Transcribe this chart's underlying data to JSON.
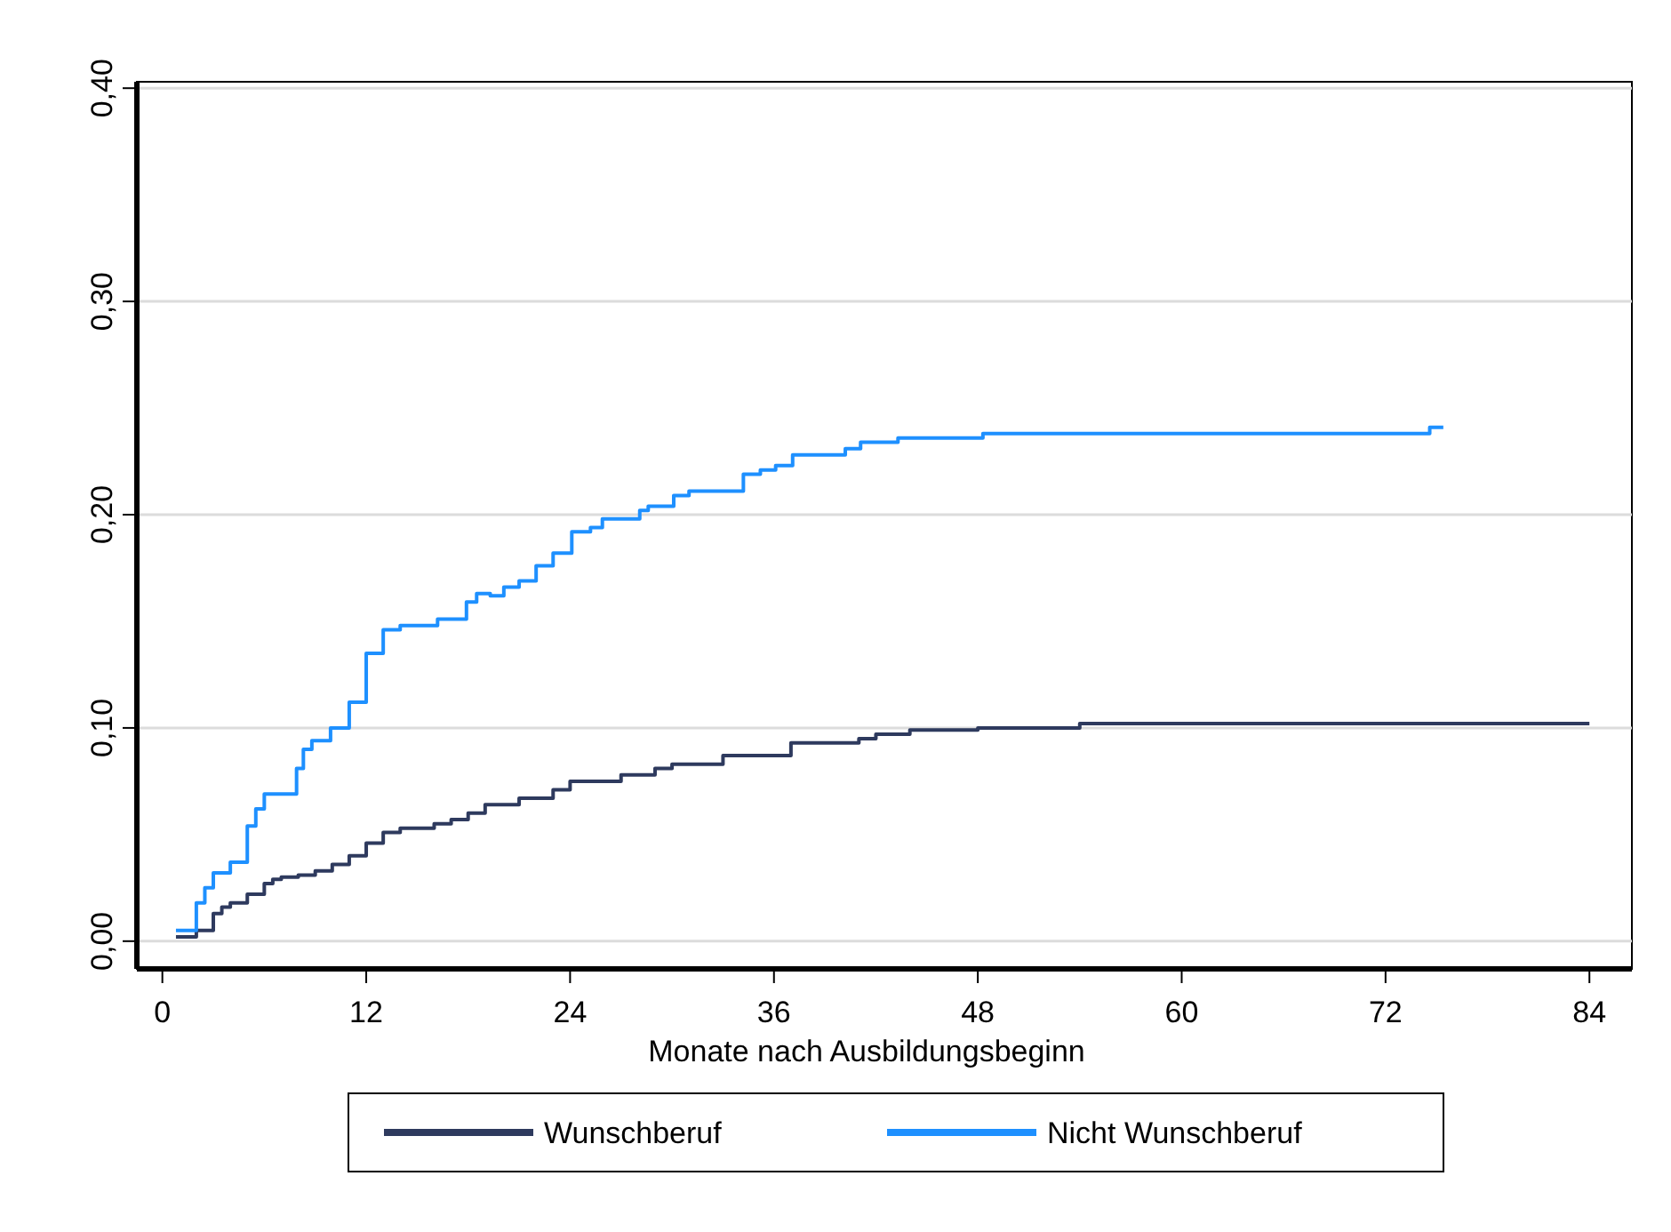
{
  "chart_data": {
    "type": "step",
    "xlabel": "Monate nach Ausbildungsbeginn",
    "xlim": [
      -1.5,
      86.5
    ],
    "xticks": [
      0,
      12,
      24,
      36,
      48,
      60,
      72,
      84
    ],
    "ylim": [
      -0.013,
      0.403
    ],
    "yticks": [
      {
        "value": 0,
        "label": "0,00"
      },
      {
        "value": 0.1,
        "label": "0,10"
      },
      {
        "value": 0.2,
        "label": "0,20"
      },
      {
        "value": 0.3,
        "label": "0,30"
      },
      {
        "value": 0.4,
        "label": "0,40"
      }
    ],
    "grid": "y",
    "legend": "bottom",
    "line_style": "solid",
    "marker": "none",
    "series": [
      {
        "name": "Wunschberuf",
        "color": "#2e3a5e",
        "x": [
          0.8,
          2,
          3,
          3.5,
          4,
          5,
          6,
          6.5,
          7,
          8,
          9,
          10,
          11,
          12,
          13,
          14,
          16,
          17,
          18,
          19,
          21,
          23,
          24,
          27,
          29,
          30,
          33,
          37,
          41,
          42,
          44,
          48,
          54,
          84
        ],
        "values": [
          0.002,
          0.005,
          0.013,
          0.016,
          0.018,
          0.022,
          0.027,
          0.029,
          0.03,
          0.031,
          0.033,
          0.036,
          0.04,
          0.046,
          0.051,
          0.053,
          0.055,
          0.057,
          0.06,
          0.064,
          0.067,
          0.071,
          0.075,
          0.078,
          0.081,
          0.083,
          0.087,
          0.093,
          0.095,
          0.097,
          0.099,
          0.1,
          0.102,
          0.102
        ]
      },
      {
        "name": "Nicht Wunschberuf",
        "color": "#1e90ff",
        "x": [
          0.8,
          2,
          2.5,
          3,
          4,
          5,
          5.5,
          6,
          7.9,
          8.3,
          8.8,
          9.9,
          11,
          12,
          13,
          14,
          16.2,
          17.9,
          18.5,
          19.3,
          20.1,
          21,
          22,
          23,
          24.1,
          25.2,
          25.9,
          28.1,
          28.6,
          30.1,
          31,
          34.2,
          35.2,
          36.1,
          37.1,
          40.2,
          41.1,
          43.3,
          48.3,
          74.6,
          75.4
        ],
        "values": [
          0.005,
          0.018,
          0.025,
          0.032,
          0.037,
          0.054,
          0.062,
          0.069,
          0.081,
          0.09,
          0.094,
          0.1,
          0.112,
          0.135,
          0.146,
          0.148,
          0.151,
          0.159,
          0.163,
          0.162,
          0.166,
          0.169,
          0.176,
          0.182,
          0.192,
          0.194,
          0.198,
          0.202,
          0.204,
          0.209,
          0.211,
          0.219,
          0.221,
          0.223,
          0.228,
          0.231,
          0.234,
          0.236,
          0.238,
          0.241,
          0.241
        ]
      }
    ]
  }
}
